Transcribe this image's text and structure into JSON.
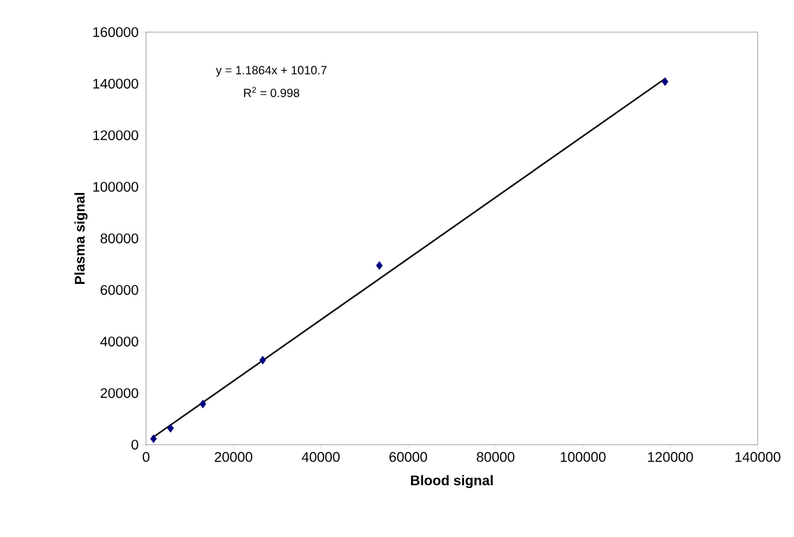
{
  "chart_data": {
    "type": "scatter",
    "xlabel": "Blood signal",
    "ylabel": "Plasma signal",
    "annotations": [
      "y = 1.1864x + 1010.7",
      "R$^{2}$ = 0.998"
    ],
    "series": [
      {
        "color": "#00007f",
        "marker": "diamond",
        "x": [
          1700,
          5600,
          13000,
          26700,
          53400,
          118800
        ],
        "values": [
          2300,
          6400,
          15800,
          32800,
          69500,
          140800
        ]
      },
      {
        "type": "line",
        "color": "#000000",
        "line_style": "solid",
        "marker": "none",
        "x": [
          1712,
          118830
        ],
        "values": [
          3000,
          142000
        ]
      }
    ],
    "xlim": [
      0,
      140000
    ],
    "ylim": [
      0,
      160000
    ],
    "xticks": [
      0,
      20000,
      40000,
      60000,
      80000,
      100000,
      120000,
      140000
    ],
    "yticks": [
      0,
      20000,
      40000,
      60000,
      80000,
      100000,
      120000,
      140000,
      160000
    ],
    "grid": false
  }
}
